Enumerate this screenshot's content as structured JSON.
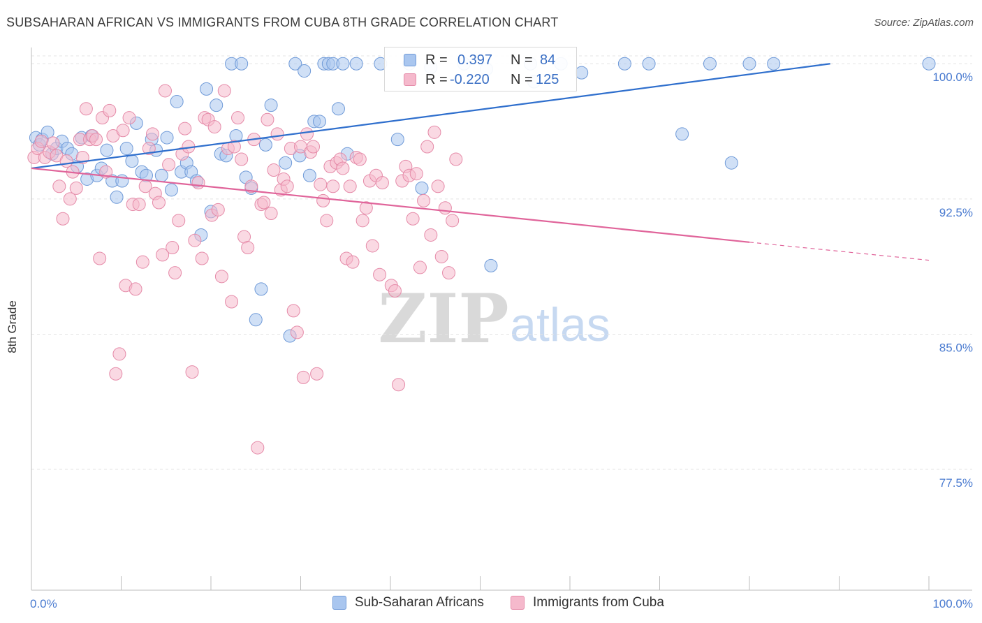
{
  "title": "SUBSAHARAN AFRICAN VS IMMIGRANTS FROM CUBA 8TH GRADE CORRELATION CHART",
  "source": "Source: ZipAtlas.com",
  "watermark": {
    "zip": "ZIP",
    "atlas": "atlas"
  },
  "legend_top": {
    "series1": {
      "r_label": "R =",
      "r_value": "0.397",
      "n_label": "N =",
      "n_value": "84"
    },
    "series2": {
      "r_label": "R =",
      "r_value": "-0.220",
      "n_label": "N =",
      "n_value": "125"
    }
  },
  "colors": {
    "blue_fill": "#a9c6ef",
    "blue_stroke": "#6f9ad8",
    "blue_line": "#2f6fcd",
    "pink_fill": "#f5b9cc",
    "pink_stroke": "#e58aa8",
    "pink_line": "#e0649a",
    "axis_text": "#4a7bd0",
    "grid": "#e3e3e3"
  },
  "chart_data": {
    "type": "scatter",
    "title": "SUBSAHARAN AFRICAN VS IMMIGRANTS FROM CUBA 8TH GRADE CORRELATION CHART",
    "xlabel": "",
    "ylabel": "8th Grade",
    "xlim": [
      0,
      100
    ],
    "ylim": [
      70.8,
      100.9
    ],
    "x_tick_labels": [
      "0.0%",
      "100.0%"
    ],
    "y_ticks": [
      77.5,
      85.0,
      92.5,
      100.0
    ],
    "y_tick_labels": [
      "77.5%",
      "85.0%",
      "92.5%",
      "100.0%"
    ],
    "grid": true,
    "legend": "bottom",
    "series": [
      {
        "name": "Sub-Saharan Africans",
        "color": "#a9c6ef",
        "trend": {
          "x": [
            0,
            89
          ],
          "y": [
            94.2,
            100.0
          ],
          "dashed_to": null
        },
        "points": [
          [
            0.5,
            95.9
          ],
          [
            0.9,
            95.5
          ],
          [
            1.2,
            95.8
          ],
          [
            1.8,
            96.2
          ],
          [
            2.3,
            95.0
          ],
          [
            2.8,
            95.3
          ],
          [
            3.4,
            95.7
          ],
          [
            4.0,
            95.3
          ],
          [
            4.5,
            95.0
          ],
          [
            5.1,
            94.3
          ],
          [
            5.6,
            95.9
          ],
          [
            6.2,
            93.6
          ],
          [
            6.7,
            96.0
          ],
          [
            7.3,
            93.8
          ],
          [
            7.8,
            94.2
          ],
          [
            8.4,
            95.2
          ],
          [
            9.0,
            93.5
          ],
          [
            9.5,
            92.6
          ],
          [
            10.1,
            93.5
          ],
          [
            10.6,
            95.3
          ],
          [
            11.2,
            94.6
          ],
          [
            11.7,
            96.7
          ],
          [
            12.3,
            94.0
          ],
          [
            12.8,
            93.8
          ],
          [
            13.4,
            95.8
          ],
          [
            13.9,
            95.2
          ],
          [
            14.5,
            93.8
          ],
          [
            15.1,
            95.9
          ],
          [
            15.6,
            93.0
          ],
          [
            16.2,
            97.9
          ],
          [
            16.7,
            94.0
          ],
          [
            17.3,
            94.5
          ],
          [
            17.8,
            94.0
          ],
          [
            18.4,
            93.5
          ],
          [
            18.9,
            90.5
          ],
          [
            19.5,
            98.6
          ],
          [
            20.0,
            91.8
          ],
          [
            20.6,
            97.7
          ],
          [
            21.1,
            95.0
          ],
          [
            21.7,
            94.9
          ],
          [
            22.3,
            100.0
          ],
          [
            22.8,
            96.0
          ],
          [
            23.4,
            100.0
          ],
          [
            23.9,
            93.7
          ],
          [
            24.5,
            93.1
          ],
          [
            25.0,
            85.8
          ],
          [
            25.6,
            87.5
          ],
          [
            26.1,
            95.5
          ],
          [
            26.7,
            97.7
          ],
          [
            28.3,
            94.5
          ],
          [
            28.8,
            84.9
          ],
          [
            29.4,
            100.0
          ],
          [
            29.9,
            94.9
          ],
          [
            30.4,
            99.6
          ],
          [
            31.0,
            93.8
          ],
          [
            31.5,
            96.8
          ],
          [
            32.1,
            96.8
          ],
          [
            32.6,
            100.0
          ],
          [
            33.1,
            100.0
          ],
          [
            33.6,
            100.0
          ],
          [
            34.2,
            97.5
          ],
          [
            34.7,
            100.0
          ],
          [
            35.2,
            95.0
          ],
          [
            36.2,
            100.0
          ],
          [
            38.9,
            100.0
          ],
          [
            40.8,
            95.8
          ],
          [
            42.1,
            100.0
          ],
          [
            43.5,
            93.1
          ],
          [
            44.5,
            99.8
          ],
          [
            48.2,
            100.0
          ],
          [
            50.7,
            99.7
          ],
          [
            51.2,
            88.8
          ],
          [
            55.6,
            100.0
          ],
          [
            56.0,
            99.0
          ],
          [
            59.0,
            100.0
          ],
          [
            61.3,
            99.5
          ],
          [
            66.1,
            100.0
          ],
          [
            68.8,
            100.0
          ],
          [
            72.5,
            96.1
          ],
          [
            75.6,
            100.0
          ],
          [
            78.0,
            94.5
          ],
          [
            80.0,
            100.0
          ],
          [
            82.7,
            100.0
          ],
          [
            100.0,
            100.0
          ]
        ]
      },
      {
        "name": "Immigrants from Cuba",
        "color": "#f5b9cc",
        "trend": {
          "x": [
            0,
            80
          ],
          "y": [
            94.2,
            90.1
          ],
          "dashed_to": [
            100,
            89.1
          ]
        },
        "points": [
          [
            0.3,
            94.8
          ],
          [
            0.7,
            95.3
          ],
          [
            1.1,
            95.7
          ],
          [
            1.5,
            94.8
          ],
          [
            2.0,
            95.1
          ],
          [
            2.4,
            95.6
          ],
          [
            2.8,
            94.9
          ],
          [
            3.1,
            93.2
          ],
          [
            3.5,
            91.4
          ],
          [
            3.9,
            94.6
          ],
          [
            4.3,
            92.5
          ],
          [
            4.6,
            94.0
          ],
          [
            5.0,
            93.1
          ],
          [
            5.4,
            95.8
          ],
          [
            5.7,
            94.8
          ],
          [
            6.1,
            97.5
          ],
          [
            6.5,
            95.8
          ],
          [
            6.8,
            96.0
          ],
          [
            7.2,
            95.8
          ],
          [
            7.6,
            89.2
          ],
          [
            7.9,
            97.0
          ],
          [
            8.3,
            94.0
          ],
          [
            8.7,
            97.4
          ],
          [
            9.1,
            96.0
          ],
          [
            9.4,
            82.8
          ],
          [
            9.8,
            83.9
          ],
          [
            10.2,
            96.3
          ],
          [
            10.5,
            87.7
          ],
          [
            10.9,
            97.0
          ],
          [
            11.3,
            92.2
          ],
          [
            11.6,
            87.5
          ],
          [
            12.0,
            92.2
          ],
          [
            12.4,
            89.0
          ],
          [
            12.7,
            93.2
          ],
          [
            13.1,
            95.3
          ],
          [
            13.5,
            96.1
          ],
          [
            13.8,
            92.8
          ],
          [
            14.2,
            92.3
          ],
          [
            14.6,
            89.4
          ],
          [
            14.9,
            98.5
          ],
          [
            15.3,
            94.4
          ],
          [
            15.7,
            89.8
          ],
          [
            16.0,
            88.4
          ],
          [
            16.4,
            91.3
          ],
          [
            16.8,
            95.0
          ],
          [
            17.1,
            96.4
          ],
          [
            17.5,
            95.4
          ],
          [
            17.9,
            82.9
          ],
          [
            18.2,
            90.2
          ],
          [
            18.6,
            93.4
          ],
          [
            19.0,
            89.2
          ],
          [
            19.3,
            97.0
          ],
          [
            19.7,
            96.9
          ],
          [
            20.1,
            91.6
          ],
          [
            20.4,
            96.5
          ],
          [
            20.8,
            91.9
          ],
          [
            21.2,
            88.2
          ],
          [
            21.5,
            98.5
          ],
          [
            21.9,
            95.3
          ],
          [
            22.3,
            86.8
          ],
          [
            22.6,
            95.4
          ],
          [
            23.0,
            97.0
          ],
          [
            23.4,
            94.7
          ],
          [
            23.7,
            90.4
          ],
          [
            24.1,
            89.8
          ],
          [
            24.5,
            93.2
          ],
          [
            24.8,
            95.8
          ],
          [
            25.2,
            78.7
          ],
          [
            25.6,
            92.2
          ],
          [
            25.9,
            92.3
          ],
          [
            26.3,
            96.9
          ],
          [
            26.7,
            91.7
          ],
          [
            27.0,
            94.1
          ],
          [
            27.4,
            96.1
          ],
          [
            27.8,
            93.0
          ],
          [
            28.1,
            93.6
          ],
          [
            28.5,
            93.2
          ],
          [
            28.9,
            95.3
          ],
          [
            29.2,
            86.3
          ],
          [
            29.6,
            85.1
          ],
          [
            30.0,
            95.4
          ],
          [
            30.3,
            82.6
          ],
          [
            30.7,
            96.1
          ],
          [
            31.1,
            95.1
          ],
          [
            31.4,
            95.4
          ],
          [
            31.8,
            82.8
          ],
          [
            32.2,
            93.3
          ],
          [
            32.5,
            92.4
          ],
          [
            32.9,
            91.3
          ],
          [
            33.3,
            94.3
          ],
          [
            33.6,
            93.2
          ],
          [
            34.0,
            94.5
          ],
          [
            34.4,
            94.7
          ],
          [
            34.7,
            94.2
          ],
          [
            35.1,
            89.2
          ],
          [
            35.5,
            93.2
          ],
          [
            35.8,
            89.0
          ],
          [
            36.2,
            94.8
          ],
          [
            36.6,
            94.7
          ],
          [
            36.9,
            91.3
          ],
          [
            37.3,
            92.0
          ],
          [
            37.7,
            93.5
          ],
          [
            38.0,
            89.9
          ],
          [
            38.4,
            93.8
          ],
          [
            38.8,
            88.3
          ],
          [
            39.1,
            93.4
          ],
          [
            40.1,
            87.7
          ],
          [
            40.5,
            87.4
          ],
          [
            40.9,
            82.2
          ],
          [
            41.3,
            93.5
          ],
          [
            41.7,
            94.3
          ],
          [
            42.1,
            93.8
          ],
          [
            42.5,
            91.4
          ],
          [
            42.9,
            93.9
          ],
          [
            43.3,
            88.7
          ],
          [
            43.7,
            92.4
          ],
          [
            44.1,
            95.4
          ],
          [
            44.5,
            90.5
          ],
          [
            44.9,
            96.2
          ],
          [
            45.3,
            93.2
          ],
          [
            45.7,
            89.3
          ],
          [
            46.1,
            92.0
          ],
          [
            46.5,
            88.4
          ],
          [
            46.9,
            91.3
          ],
          [
            47.3,
            94.7
          ]
        ]
      }
    ]
  },
  "legend_bottom": [
    {
      "label": "Sub-Saharan Africans"
    },
    {
      "label": "Immigrants from Cuba"
    }
  ]
}
